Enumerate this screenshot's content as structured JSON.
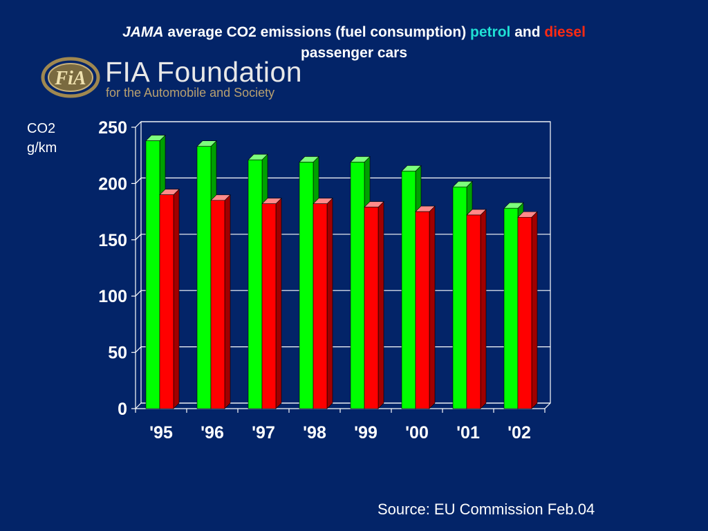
{
  "title": {
    "jama": "JAMA",
    "middle": " average CO2 emissions (fuel consumption) ",
    "petrol": "petrol",
    "and": " and ",
    "diesel": "diesel",
    "line2": "passenger cars"
  },
  "logo": {
    "emblem": "FiA",
    "name": "FIA Foundation",
    "tagline": "for the Automobile and Society"
  },
  "unit_label": {
    "line1": "CO2",
    "line2": "g/km"
  },
  "source": "Source: EU Commission Feb.04",
  "colors": {
    "background": "#032468",
    "petrol_bar": "#00ff00",
    "diesel_bar": "#ff0000",
    "petrol_title": "#1fe0d4",
    "diesel_title": "#ff2a12"
  },
  "chart_data": {
    "type": "bar",
    "categories": [
      "'95",
      "'96",
      "'97",
      "'98",
      "'99",
      "'00",
      "'01",
      "'02"
    ],
    "series": [
      {
        "name": "petrol",
        "values": [
          238,
          233,
          221,
          219,
          219,
          211,
          197,
          178
        ]
      },
      {
        "name": "diesel",
        "values": [
          190,
          185,
          182,
          182,
          179,
          175,
          172,
          170
        ]
      }
    ],
    "ylim": [
      0,
      250
    ],
    "yticks": [
      0,
      50,
      100,
      150,
      200,
      250
    ],
    "grid": true,
    "style": "3d"
  }
}
